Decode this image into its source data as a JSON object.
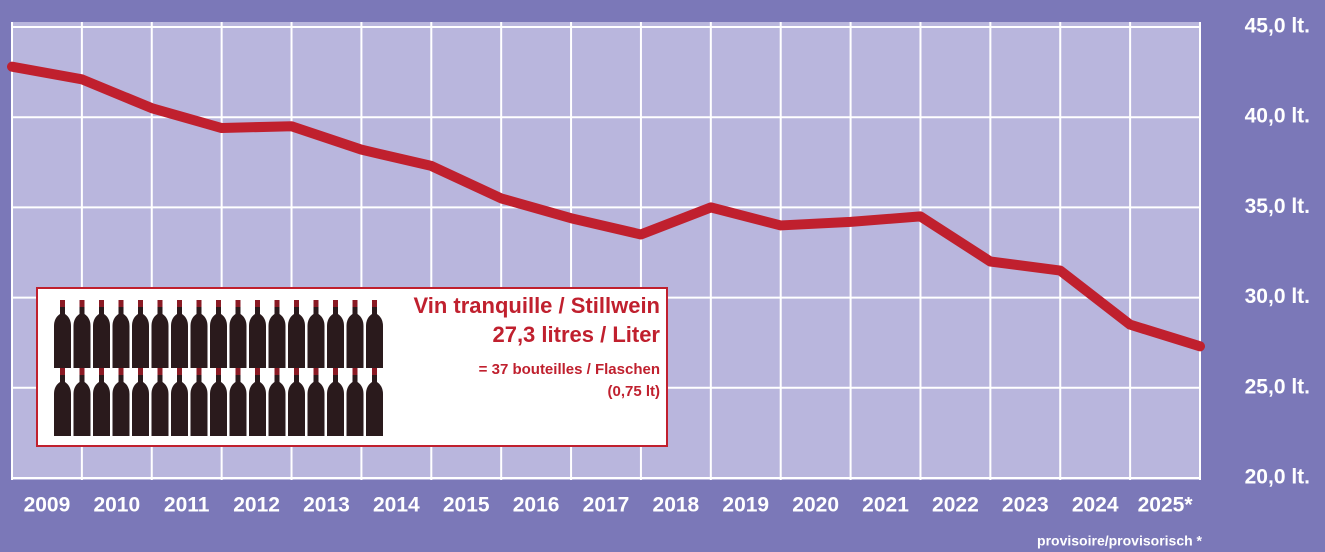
{
  "chart_data": {
    "type": "line",
    "categories": [
      null,
      "2009",
      "2010",
      "2011",
      "2012",
      "2013",
      "2014",
      "2015",
      "2016",
      "2017",
      "2018",
      "2019",
      "2020",
      "2021",
      "2022",
      "2023",
      "2024",
      "2025*"
    ],
    "series": [
      {
        "name": "Vin tranquille / Stillwein",
        "color": "#c0202e",
        "values": [
          42.8,
          42.1,
          40.5,
          39.4,
          39.5,
          38.2,
          37.3,
          35.5,
          34.4,
          33.5,
          35.0,
          34.0,
          34.2,
          34.5,
          32.0,
          31.5,
          28.5,
          27.3
        ]
      }
    ],
    "ylim": [
      20,
      45
    ],
    "yticks": [
      {
        "value": 20,
        "label": "20,0 lt."
      },
      {
        "value": 25,
        "label": "25,0 lt."
      },
      {
        "value": 30,
        "label": "30,0 lt."
      },
      {
        "value": 35,
        "label": "35,0 lt."
      },
      {
        "value": 40,
        "label": "40,0 lt."
      },
      {
        "value": 45,
        "label": "45,0 lt."
      }
    ],
    "grid": true,
    "annotations": {
      "amount": "27,3 litres / Liter",
      "bottles": "= 37 bouteilles / Flaschen",
      "bottle_size": "(0,75 lt)",
      "footnote": "provisoire/provisorisch *"
    }
  }
}
